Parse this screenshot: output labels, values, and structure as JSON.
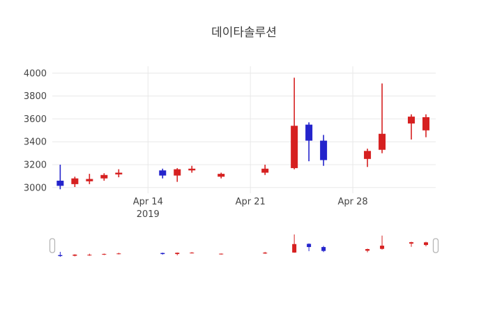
{
  "chart_data": {
    "type": "candlestick",
    "title": "데이타솔루션",
    "increasing_color": "#d62020",
    "decreasing_color": "#2424cc",
    "grid_color": "#e8e8e8",
    "axis_text_color": "#444444",
    "background_color": "#ffffff",
    "rangeslider": true,
    "yaxis_ticks": [
      3000,
      3200,
      3400,
      3600,
      3800,
      4000
    ],
    "yaxis_range": [
      2950,
      4060
    ],
    "xaxis_range": [
      "2019-04-07T11:00:00Z",
      "2019-05-03T16:00:00Z"
    ],
    "xaxis_ticks": [
      {
        "date": "2019-04-14",
        "label": "Apr 14",
        "year": "2019"
      },
      {
        "date": "2019-04-21",
        "label": "Apr 21",
        "year": ""
      },
      {
        "date": "2019-04-28",
        "label": "Apr 28",
        "year": ""
      }
    ],
    "x": [
      "2019-04-08",
      "2019-04-09",
      "2019-04-10",
      "2019-04-11",
      "2019-04-12",
      "2019-04-15",
      "2019-04-16",
      "2019-04-17",
      "2019-04-19",
      "2019-04-22",
      "2019-04-24",
      "2019-04-25",
      "2019-04-26",
      "2019-04-29",
      "2019-04-30",
      "2019-05-02",
      "2019-05-03"
    ],
    "open": [
      3060,
      3030,
      3055,
      3080,
      3115,
      3150,
      3105,
      3150,
      3095,
      3130,
      3170,
      3550,
      3410,
      3250,
      3330,
      3560,
      3500
    ],
    "high": [
      3200,
      3095,
      3120,
      3125,
      3160,
      3165,
      3170,
      3190,
      3130,
      3200,
      3960,
      3570,
      3460,
      3340,
      3910,
      3640,
      3640
    ],
    "low": [
      2985,
      3005,
      3030,
      3060,
      3090,
      3080,
      3050,
      3130,
      3080,
      3110,
      3160,
      3230,
      3190,
      3180,
      3300,
      3420,
      3440
    ],
    "close": [
      3015,
      3080,
      3075,
      3110,
      3130,
      3105,
      3160,
      3165,
      3120,
      3165,
      3540,
      3410,
      3240,
      3320,
      3470,
      3620,
      3615
    ]
  }
}
